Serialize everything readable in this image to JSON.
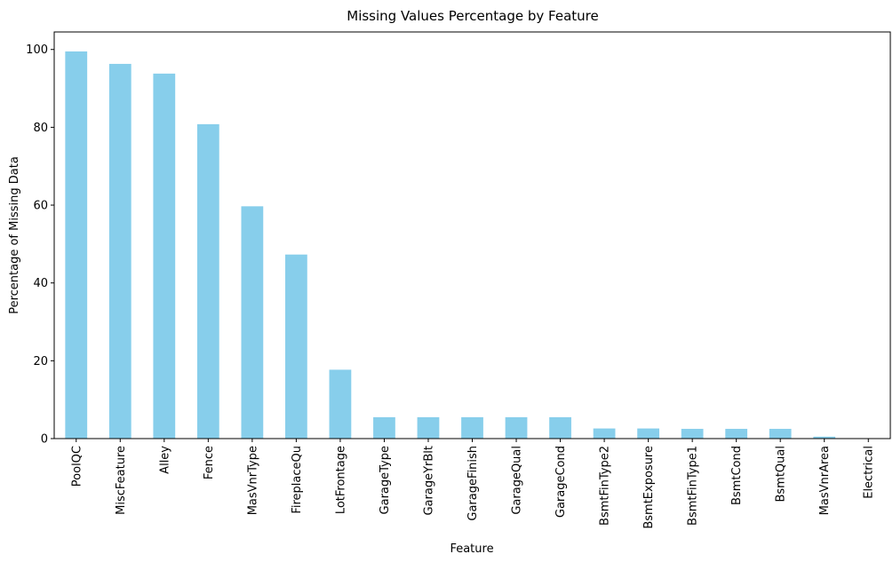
{
  "chart_data": {
    "type": "bar",
    "title": "Missing Values Percentage by Feature",
    "xlabel": "Feature",
    "ylabel": "Percentage of Missing Data",
    "ylim": [
      0,
      104.5
    ],
    "yticks": [
      0,
      20,
      40,
      60,
      80,
      100
    ],
    "grid": false,
    "legend": "none",
    "bar_color": "#87ceeb",
    "categories": [
      "PoolQC",
      "MiscFeature",
      "Alley",
      "Fence",
      "MasVnrType",
      "FireplaceQu",
      "LotFrontage",
      "GarageType",
      "GarageYrBlt",
      "GarageFinish",
      "GarageQual",
      "GarageCond",
      "BsmtFinType2",
      "BsmtExposure",
      "BsmtFinType1",
      "BsmtCond",
      "BsmtQual",
      "MasVnrArea",
      "Electrical"
    ],
    "values": [
      99.5,
      96.3,
      93.8,
      80.8,
      59.7,
      47.3,
      17.7,
      5.5,
      5.5,
      5.5,
      5.5,
      5.5,
      2.6,
      2.6,
      2.5,
      2.5,
      2.5,
      0.5,
      0.1
    ]
  }
}
